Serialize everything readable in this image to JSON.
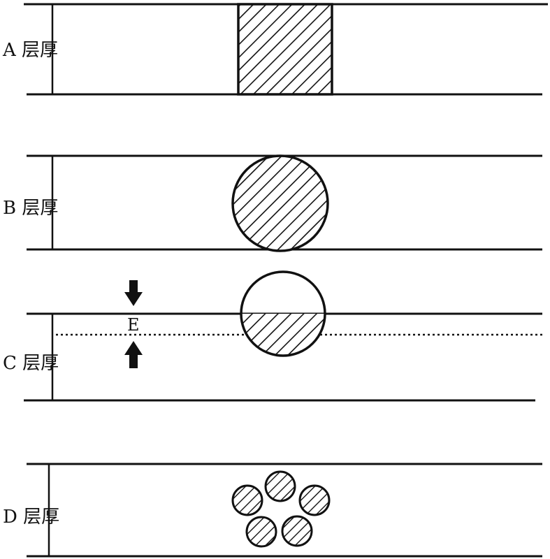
{
  "diagram": {
    "panels": [
      {
        "label": "A 层厚",
        "object_shape": "square"
      },
      {
        "label": "B 层厚",
        "object_shape": "circle"
      },
      {
        "label": "C 层厚",
        "object_shape": "circle straddling upper boundary"
      },
      {
        "label": "D 层厚",
        "object_shape": "ring of five small circles"
      }
    ],
    "panel_c_gap_label": "E"
  }
}
